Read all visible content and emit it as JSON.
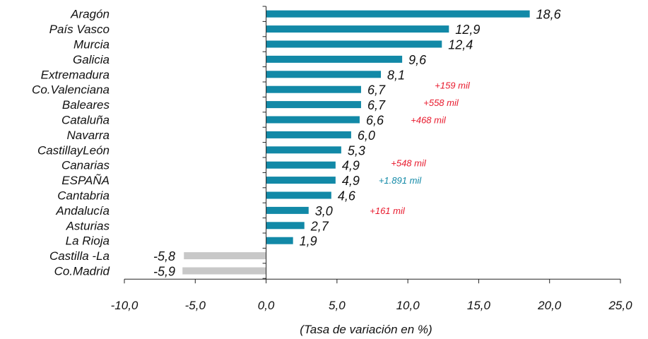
{
  "chart_data": {
    "type": "bar",
    "orientation": "horizontal",
    "categories": [
      "Aragón",
      "País Vasco",
      "Murcia",
      "Galicia",
      "Extremadura",
      "Co.Valenciana",
      "Baleares",
      "Cataluña",
      "Navarra",
      "CastillayLeón",
      "Canarias",
      "ESPAÑA",
      "Cantabria",
      "Andalucía",
      "Asturias",
      "La Rioja",
      "Castilla -La",
      "Co.Madrid"
    ],
    "values": [
      18.6,
      12.9,
      12.4,
      9.6,
      8.1,
      6.7,
      6.7,
      6.6,
      6.0,
      5.3,
      4.9,
      4.9,
      4.6,
      3.0,
      2.7,
      1.9,
      -5.8,
      -5.9
    ],
    "value_labels": [
      "18,6",
      "12,9",
      "12,4",
      "9,6",
      "8,1",
      "6,7",
      "6,7",
      "6,6",
      "6,0",
      "5,3",
      "4,9",
      "4,9",
      "4,6",
      "3,0",
      "2,7",
      "1,9",
      "-5,8",
      "-5,9"
    ],
    "xlim": [
      -10,
      25
    ],
    "x_ticks": [
      -10,
      -5,
      0,
      5,
      10,
      15,
      20,
      25
    ],
    "x_tick_labels": [
      "-10,0",
      "-5,0",
      "0,0",
      "5,0",
      "10,0",
      "15,0",
      "20,0",
      "25,0"
    ],
    "xlabel": "(Tasa de variación en %)",
    "title": "",
    "colors": {
      "positive": "#1289a7",
      "negative": "#c8c8c8",
      "annotation_red": "#e8192c",
      "annotation_blue": "#1289a7"
    },
    "annotations": [
      {
        "category": "Co.Valenciana",
        "text": "+159 mil",
        "color": "red"
      },
      {
        "category": "Baleares",
        "text": "+558 mil",
        "color": "red"
      },
      {
        "category": "Cataluña",
        "text": "+468 mil",
        "color": "red"
      },
      {
        "category": "Canarias",
        "text": "+548 mil",
        "color": "red"
      },
      {
        "category": "ESPAÑA",
        "text": "+1.891 mil",
        "color": "blue"
      },
      {
        "category": "Andalucía",
        "text": "+161 mil",
        "color": "red"
      }
    ]
  }
}
